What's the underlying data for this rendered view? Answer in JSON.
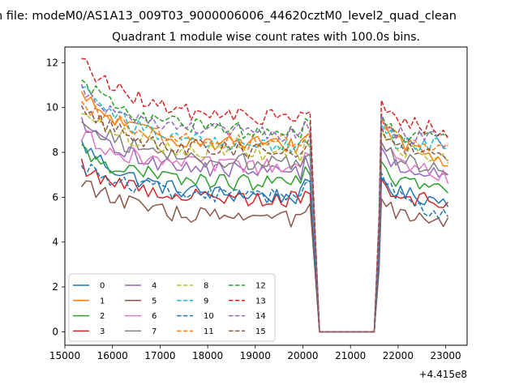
{
  "figure": {
    "suptitle": "n file: modeM0/AS1A13_009T03_9000006006_44620cztM0_level2_quad_clean",
    "title": "Quadrant 1 module wise count rates with 100.0s bins.",
    "x_offset_text": "+4.415e8"
  },
  "chart_data": {
    "type": "line",
    "title": "Quadrant 1 module wise count rates with 100.0s bins.",
    "xlabel": "",
    "ylabel": "",
    "xlim": [
      15000,
      23450
    ],
    "ylim": [
      -0.6,
      12.7
    ],
    "x_offset": 441500000,
    "xticks": [
      15000,
      16000,
      17000,
      18000,
      19000,
      20000,
      21000,
      22000,
      23000
    ],
    "xtick_labels": [
      "15000",
      "16000",
      "17000",
      "18000",
      "19000",
      "20000",
      "21000",
      "22000",
      "23000"
    ],
    "yticks": [
      0,
      2,
      4,
      6,
      8,
      10,
      12
    ],
    "ytick_labels": [
      "0",
      "2",
      "4",
      "6",
      "8",
      "10",
      "12"
    ],
    "legend_placement": "lower-left",
    "legend_columns": 4,
    "segments": {
      "seg1": [
        15350,
        20200
      ],
      "drop_end": 20350,
      "gap": [
        20350,
        21500
      ],
      "rise_start": 21500,
      "seg2": [
        21650,
        23100
      ],
      "step": 100
    },
    "series": [
      {
        "name": "0",
        "color": "#1f77b4",
        "dash": "solid",
        "start": 8.4,
        "level": 6.0,
        "post_level": 6.3,
        "end": 5.8
      },
      {
        "name": "1",
        "color": "#ff7f0e",
        "dash": "solid",
        "start": 10.5,
        "level": 8.3,
        "post_level": 8.9,
        "end": 7.5
      },
      {
        "name": "2",
        "color": "#2ca02c",
        "dash": "solid",
        "start": 8.1,
        "level": 6.6,
        "post_level": 7.0,
        "end": 6.2
      },
      {
        "name": "3",
        "color": "#d62728",
        "dash": "solid",
        "start": 7.4,
        "level": 5.9,
        "post_level": 6.2,
        "end": 5.7
      },
      {
        "name": "4",
        "color": "#9467bd",
        "dash": "solid",
        "start": 9.2,
        "level": 7.1,
        "post_level": 7.6,
        "end": 6.8
      },
      {
        "name": "5",
        "color": "#8c564b",
        "dash": "solid",
        "start": 6.8,
        "level": 5.0,
        "post_level": 5.3,
        "end": 4.8
      },
      {
        "name": "6",
        "color": "#e377c2",
        "dash": "solid",
        "start": 8.8,
        "level": 7.3,
        "post_level": 7.8,
        "end": 6.9
      },
      {
        "name": "7",
        "color": "#7f7f7f",
        "dash": "solid",
        "start": 9.6,
        "level": 7.5,
        "post_level": 7.8,
        "end": 7.2
      },
      {
        "name": "8",
        "color": "#bcbd22",
        "dash": "dashed",
        "start": 9.9,
        "level": 7.9,
        "post_level": 8.3,
        "end": 7.6
      },
      {
        "name": "9",
        "color": "#17becf",
        "dash": "dashed",
        "start": 11.0,
        "level": 8.2,
        "post_level": 8.6,
        "end": 8.2
      },
      {
        "name": "10",
        "color": "#1f77b4",
        "dash": "dashed",
        "start": 7.5,
        "level": 6.0,
        "post_level": 6.4,
        "end": 5.0
      },
      {
        "name": "11",
        "color": "#ff7f0e",
        "dash": "dashed",
        "start": 10.3,
        "level": 8.4,
        "post_level": 8.8,
        "end": 8.2
      },
      {
        "name": "12",
        "color": "#2ca02c",
        "dash": "dashed",
        "start": 11.2,
        "level": 8.9,
        "post_level": 9.0,
        "end": 8.4
      },
      {
        "name": "13",
        "color": "#d62728",
        "dash": "dashed",
        "start": 12.1,
        "level": 9.5,
        "post_level": 9.6,
        "end": 8.9
      },
      {
        "name": "14",
        "color": "#9467bd",
        "dash": "dashed",
        "start": 10.9,
        "level": 8.8,
        "post_level": 8.9,
        "end": 8.5
      },
      {
        "name": "15",
        "color": "#8c564b",
        "dash": "dashed",
        "start": 9.9,
        "level": 8.0,
        "post_level": 8.4,
        "end": 7.7
      }
    ]
  }
}
